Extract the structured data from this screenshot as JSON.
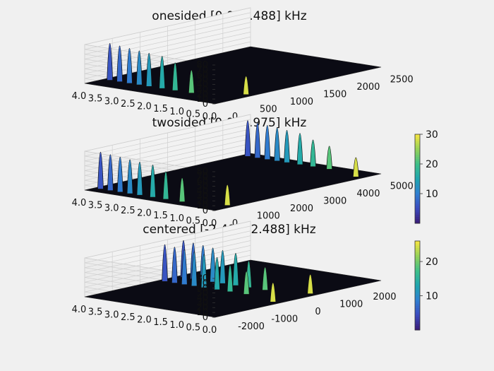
{
  "colors": {
    "background": "#f0f0f0",
    "floor": "#0b0b14",
    "grid": "#cfcfcf",
    "colormap": [
      "#3b1e7a",
      "#3b4cc0",
      "#2f7fd0",
      "#1fa5b0",
      "#3cbf8a",
      "#8fd05a",
      "#f0e442"
    ]
  },
  "chart_data": [
    {
      "type": "surface3d",
      "title": "onesided [0.0, 2.488] kHz",
      "x_ticks": [
        "0",
        "500",
        "1000",
        "1500",
        "2000",
        "2500"
      ],
      "y_ticks": [
        "4.0",
        "3.5",
        "3.0",
        "2.5",
        "2.0",
        "1.5",
        "1.0",
        "0.5",
        "0.0"
      ],
      "z_ticks": [
        "0",
        "10",
        "20",
        "30",
        "40",
        "50",
        "60",
        "70",
        "80"
      ],
      "xlim": [
        0,
        2488
      ],
      "ylim": [
        0,
        4.0
      ],
      "zlim": [
        0,
        80
      ],
      "peaks": [
        {
          "x": 280,
          "y": 3.8,
          "z": 80
        },
        {
          "x": 280,
          "y": 3.5,
          "z": 78
        },
        {
          "x": 280,
          "y": 3.2,
          "z": 76
        },
        {
          "x": 280,
          "y": 2.9,
          "z": 74
        },
        {
          "x": 280,
          "y": 2.6,
          "z": 72
        },
        {
          "x": 280,
          "y": 2.2,
          "z": 70
        },
        {
          "x": 280,
          "y": 1.8,
          "z": 60
        },
        {
          "x": 280,
          "y": 1.3,
          "z": 50
        },
        {
          "x": 560,
          "y": 0.2,
          "z": 40
        }
      ],
      "colorbar": null
    },
    {
      "type": "surface3d",
      "title": "twosided [0.0, 4.975] kHz",
      "x_ticks": [
        "0",
        "1000",
        "2000",
        "3000",
        "4000",
        "5000"
      ],
      "y_ticks": [
        "4.0",
        "3.5",
        "3.0",
        "2.5",
        "2.0",
        "1.5",
        "1.0",
        "0.5",
        "0.0"
      ],
      "z_ticks": [
        "0",
        "10",
        "20",
        "30",
        "40",
        "50",
        "60",
        "70",
        "80"
      ],
      "xlim": [
        0,
        4975
      ],
      "ylim": [
        0,
        4.0
      ],
      "zlim": [
        0,
        80
      ],
      "peaks": [
        {
          "x": 280,
          "y": 3.8,
          "z": 80
        },
        {
          "x": 280,
          "y": 3.5,
          "z": 78
        },
        {
          "x": 280,
          "y": 3.2,
          "z": 76
        },
        {
          "x": 280,
          "y": 2.9,
          "z": 74
        },
        {
          "x": 280,
          "y": 2.6,
          "z": 72
        },
        {
          "x": 280,
          "y": 2.2,
          "z": 70
        },
        {
          "x": 280,
          "y": 1.8,
          "z": 60
        },
        {
          "x": 280,
          "y": 1.3,
          "z": 52
        },
        {
          "x": 560,
          "y": 0.2,
          "z": 45
        },
        {
          "x": 4695,
          "y": 3.8,
          "z": 78
        },
        {
          "x": 4695,
          "y": 3.5,
          "z": 76
        },
        {
          "x": 4695,
          "y": 3.2,
          "z": 74
        },
        {
          "x": 4695,
          "y": 2.9,
          "z": 72
        },
        {
          "x": 4695,
          "y": 2.6,
          "z": 70
        },
        {
          "x": 4695,
          "y": 2.2,
          "z": 68
        },
        {
          "x": 4695,
          "y": 1.8,
          "z": 58
        },
        {
          "x": 4695,
          "y": 1.3,
          "z": 50
        },
        {
          "x": 4415,
          "y": 0.2,
          "z": 42
        }
      ],
      "colorbar": {
        "ticks": [
          "10",
          "20",
          "30"
        ],
        "min": 0,
        "max": 30
      }
    },
    {
      "type": "surface3d",
      "title": "centered [-2.488, 2.488] kHz",
      "x_ticks": [
        "-2000",
        "-1000",
        "0",
        "1000",
        "2000"
      ],
      "y_ticks": [
        "4.0",
        "3.5",
        "3.0",
        "2.5",
        "2.0",
        "1.5",
        "1.0",
        "0.5",
        "0.0"
      ],
      "z_ticks": [
        "0",
        "10",
        "20",
        "30",
        "40",
        "50",
        "60",
        "70",
        "80"
      ],
      "xlim": [
        -2488,
        2488
      ],
      "ylim": [
        0,
        4.0
      ],
      "zlim": [
        0,
        80
      ],
      "peaks": [
        {
          "x": -280,
          "y": 3.8,
          "z": 80
        },
        {
          "x": -280,
          "y": 3.5,
          "z": 78
        },
        {
          "x": -280,
          "y": 3.2,
          "z": 76
        },
        {
          "x": -280,
          "y": 2.9,
          "z": 74
        },
        {
          "x": -280,
          "y": 2.6,
          "z": 72
        },
        {
          "x": -280,
          "y": 2.2,
          "z": 70
        },
        {
          "x": -280,
          "y": 1.8,
          "z": 58
        },
        {
          "x": -280,
          "y": 1.3,
          "z": 50
        },
        {
          "x": 280,
          "y": 3.8,
          "z": 80
        },
        {
          "x": 280,
          "y": 3.5,
          "z": 78
        },
        {
          "x": 280,
          "y": 3.2,
          "z": 76
        },
        {
          "x": 280,
          "y": 2.9,
          "z": 74
        },
        {
          "x": 280,
          "y": 2.6,
          "z": 72
        },
        {
          "x": 280,
          "y": 2.2,
          "z": 70
        },
        {
          "x": 280,
          "y": 1.8,
          "z": 58
        },
        {
          "x": 280,
          "y": 1.3,
          "z": 50
        },
        {
          "x": 560,
          "y": 0.2,
          "z": 42
        },
        {
          "x": -560,
          "y": 0.2,
          "z": 42
        }
      ],
      "colorbar": {
        "ticks": [
          "10",
          "20"
        ],
        "min": 0,
        "max": 26
      }
    }
  ]
}
